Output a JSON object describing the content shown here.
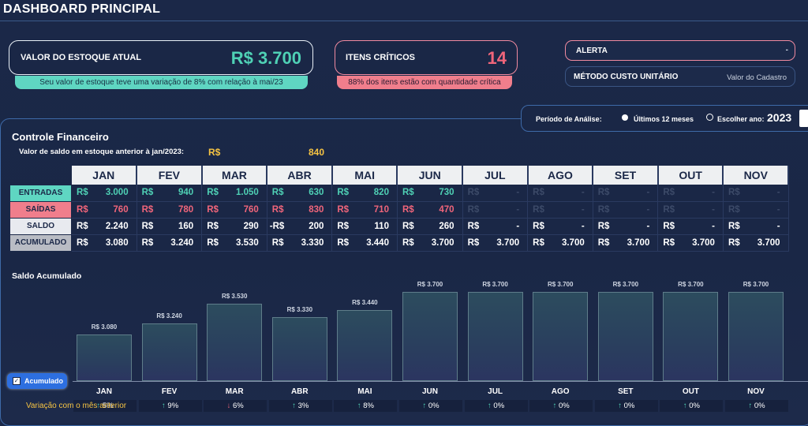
{
  "page": {
    "title": "DASHBOARD PRINCIPAL"
  },
  "colors": {
    "green": "#4fd1b5",
    "red": "#f0657a",
    "gold": "#f6c443",
    "header_bg": "#eef0f2"
  },
  "cards": {
    "stock": {
      "label": "VALOR DO ESTOQUE ATUAL",
      "value": "R$ 3.700",
      "note": "Seu valor de estoque teve uma variação de 8% com relação à mai/23"
    },
    "critical": {
      "label": "ITENS CRÍTICOS",
      "value": "14",
      "note": "88% dos itens estão com quantidade crítica"
    },
    "alert": {
      "label": "ALERTA",
      "chevron": "-"
    },
    "method": {
      "label": "MÉTODO CUSTO UNITÁRIO",
      "value": "Valor do Cadastro"
    }
  },
  "period": {
    "label": "Período de Análise:",
    "option1": "Últimos 12 meses",
    "option2": "Escolher ano:",
    "year": "2023"
  },
  "finance": {
    "title": "Controle Financeiro",
    "prev_label": "Valor de saldo em estoque anterior à jan/2023:",
    "prev_currency": "R$",
    "prev_value": "840",
    "months": [
      "JAN",
      "FEV",
      "MAR",
      "ABR",
      "MAI",
      "JUN",
      "JUL",
      "AGO",
      "SET",
      "OUT",
      "NOV"
    ],
    "rows": [
      {
        "label": "ENTRADAS",
        "currency": "R$",
        "values": [
          "3.000",
          "940",
          "1.050",
          "630",
          "820",
          "730",
          "-",
          "-",
          "-",
          "-",
          "-"
        ]
      },
      {
        "label": "SAÍDAS",
        "currency": "R$",
        "values": [
          "760",
          "780",
          "760",
          "830",
          "710",
          "470",
          "-",
          "-",
          "-",
          "-",
          "-"
        ]
      },
      {
        "label": "SALDO",
        "currency": "R$",
        "values": [
          "2.240",
          "160",
          "290",
          "200",
          "110",
          "260",
          "-",
          "-",
          "-",
          "-",
          "-"
        ],
        "prefix_neg": [
          false,
          false,
          false,
          true,
          false,
          false,
          false,
          false,
          false,
          false,
          false
        ]
      },
      {
        "label": "ACUMULADO",
        "currency": "R$",
        "values": [
          "3.080",
          "3.240",
          "3.530",
          "3.330",
          "3.440",
          "3.700",
          "3.700",
          "3.700",
          "3.700",
          "3.700",
          "3.700"
        ]
      }
    ]
  },
  "chart": {
    "title": "Saldo Acumulado",
    "checkbox_label": "Acumulado",
    "variation_label": "Variação com o mês anterior"
  },
  "chart_data": {
    "type": "bar",
    "categories": [
      "JAN",
      "FEV",
      "MAR",
      "ABR",
      "MAI",
      "JUN",
      "JUL",
      "AGO",
      "SET",
      "OUT",
      "NOV"
    ],
    "values": [
      3080,
      3240,
      3530,
      3330,
      3440,
      3700,
      3700,
      3700,
      3700,
      3700,
      3700
    ],
    "data_labels": [
      "R$ 3.080",
      "R$ 3.240",
      "R$ 3.530",
      "R$ 3.330",
      "R$ 3.440",
      "R$ 3.700",
      "R$ 3.700",
      "R$ 3.700",
      "R$ 3.700",
      "R$ 3.700",
      "R$ 3.700"
    ],
    "variation": [
      {
        "dir": "up",
        "text": "5%"
      },
      {
        "dir": "up",
        "text": "9%"
      },
      {
        "dir": "down",
        "text": "6%"
      },
      {
        "dir": "up",
        "text": "3%"
      },
      {
        "dir": "up",
        "text": "8%"
      },
      {
        "dir": "up",
        "text": "0%"
      },
      {
        "dir": "up",
        "text": "0%"
      },
      {
        "dir": "up",
        "text": "0%"
      },
      {
        "dir": "up",
        "text": "0%"
      },
      {
        "dir": "up",
        "text": "0%"
      },
      {
        "dir": "up",
        "text": "0%"
      }
    ],
    "ylim": [
      0,
      3700
    ]
  }
}
